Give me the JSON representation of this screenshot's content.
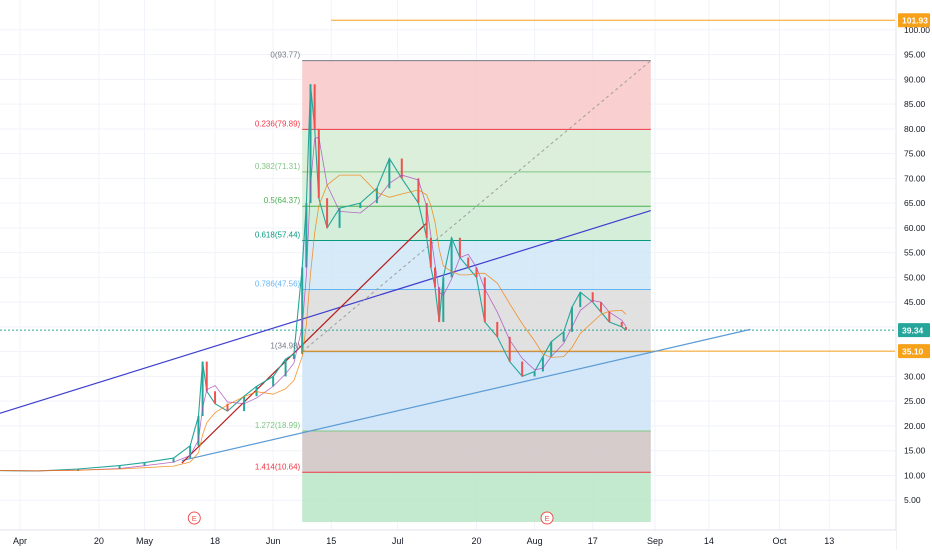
{
  "chart_data": {
    "type": "candlestick",
    "title": "",
    "xlabel": "",
    "ylabel": "",
    "ylim": [
      0.6,
      104
    ],
    "y_ticks": [
      "5.00",
      "10.00",
      "15.00",
      "20.00",
      "25.00",
      "30.00",
      "35.00",
      "40.00",
      "45.00",
      "50.00",
      "55.00",
      "60.00",
      "65.00",
      "70.00",
      "75.00",
      "80.00",
      "85.00",
      "90.00",
      "95.00",
      "100.00"
    ],
    "x_tick_labels": [
      {
        "date": "2020-04-01",
        "label": "Apr"
      },
      {
        "date": "2020-04-20",
        "label": "20"
      },
      {
        "date": "2020-05-01",
        "label": "May"
      },
      {
        "date": "2020-05-18",
        "label": "18"
      },
      {
        "date": "2020-06-01",
        "label": "Jun"
      },
      {
        "date": "2020-06-15",
        "label": "15"
      },
      {
        "date": "2020-07-01",
        "label": "Jul"
      },
      {
        "date": "2020-07-20",
        "label": "20"
      },
      {
        "date": "2020-08-03",
        "label": "Aug"
      },
      {
        "date": "2020-08-17",
        "label": "17"
      },
      {
        "date": "2020-09-01",
        "label": "Sep"
      },
      {
        "date": "2020-09-14",
        "label": "14"
      },
      {
        "date": "2020-10-01",
        "label": "Oct"
      },
      {
        "date": "2020-10-13",
        "label": "13"
      }
    ],
    "price_line": [
      [
        "2020-03-25",
        11.0
      ],
      [
        "2020-04-05",
        10.9
      ],
      [
        "2020-04-15",
        11.3
      ],
      [
        "2020-04-25",
        12.0
      ],
      [
        "2020-05-01",
        12.6
      ],
      [
        "2020-05-08",
        13.5
      ],
      [
        "2020-05-12",
        16.0
      ],
      [
        "2020-05-14",
        22.0
      ],
      [
        "2020-05-15",
        33.0
      ],
      [
        "2020-05-16",
        27.0
      ],
      [
        "2020-05-18",
        24.5
      ],
      [
        "2020-05-21",
        23.0
      ],
      [
        "2020-05-25",
        26.0
      ],
      [
        "2020-05-28",
        28.0
      ],
      [
        "2020-06-01",
        30.0
      ],
      [
        "2020-06-04",
        33.5
      ],
      [
        "2020-06-06",
        34.5
      ],
      [
        "2020-06-08",
        52.0
      ],
      [
        "2020-06-09",
        65.0
      ],
      [
        "2020-06-10",
        89.0
      ],
      [
        "2020-06-11",
        80.0
      ],
      [
        "2020-06-12",
        66.0
      ],
      [
        "2020-06-14",
        60.0
      ],
      [
        "2020-06-17",
        64.0
      ],
      [
        "2020-06-22",
        65.0
      ],
      [
        "2020-06-26",
        68.0
      ],
      [
        "2020-06-29",
        74.0
      ],
      [
        "2020-07-02",
        70.0
      ],
      [
        "2020-07-06",
        65.0
      ],
      [
        "2020-07-08",
        58.0
      ],
      [
        "2020-07-09",
        52.0
      ],
      [
        "2020-07-10",
        48.0
      ],
      [
        "2020-07-11",
        41.0
      ],
      [
        "2020-07-12",
        50.0
      ],
      [
        "2020-07-14",
        58.0
      ],
      [
        "2020-07-16",
        54.0
      ],
      [
        "2020-07-18",
        52.0
      ],
      [
        "2020-07-20",
        50.0
      ],
      [
        "2020-07-22",
        41.0
      ],
      [
        "2020-07-25",
        38.0
      ],
      [
        "2020-07-28",
        33.0
      ],
      [
        "2020-07-31",
        30.0
      ],
      [
        "2020-08-03",
        31.0
      ],
      [
        "2020-08-05",
        34.0
      ],
      [
        "2020-08-07",
        37.0
      ],
      [
        "2020-08-10",
        39.0
      ],
      [
        "2020-08-12",
        44.0
      ],
      [
        "2020-08-14",
        47.0
      ],
      [
        "2020-08-17",
        45.0
      ],
      [
        "2020-08-19",
        43.0
      ],
      [
        "2020-08-21",
        41.0
      ],
      [
        "2020-08-24",
        40.0
      ],
      [
        "2020-08-25",
        39.34
      ]
    ],
    "fib_retracement": {
      "levels": [
        {
          "ratio": "0",
          "value": 93.77,
          "label": "0(93.77)",
          "color": "#787b86"
        },
        {
          "ratio": "0.236",
          "value": 79.89,
          "label": "0.236(79.89)",
          "color": "#f23645"
        },
        {
          "ratio": "0.382",
          "value": 71.31,
          "label": "0.382(71.31)",
          "color": "#81c784"
        },
        {
          "ratio": "0.5",
          "value": 64.37,
          "label": "0.5(64.37)",
          "color": "#4caf50"
        },
        {
          "ratio": "0.618",
          "value": 57.44,
          "label": "0.618(57.44)",
          "color": "#089981"
        },
        {
          "ratio": "0.786",
          "value": 47.56,
          "label": "0.786(47.56)",
          "color": "#64b5f6"
        },
        {
          "ratio": "1",
          "value": 35.0,
          "label": "1(34.98)",
          "color": "#787b86"
        },
        {
          "ratio": "1.272",
          "value": 18.99,
          "label": "1.272(18.99)",
          "color": "#81c784"
        },
        {
          "ratio": "1.414",
          "value": 10.64,
          "label": "1.414(10.64)",
          "color": "#f23645"
        }
      ],
      "zones": [
        {
          "from": 93.77,
          "to": 79.89,
          "color": "#f8c7c7"
        },
        {
          "from": 79.89,
          "to": 71.31,
          "color": "#d5ecd3"
        },
        {
          "from": 71.31,
          "to": 64.37,
          "color": "#d5ecd3"
        },
        {
          "from": 64.37,
          "to": 57.44,
          "color": "#cdebd3"
        },
        {
          "from": 57.44,
          "to": 47.56,
          "color": "#cfe6f7"
        },
        {
          "from": 47.56,
          "to": 35.0,
          "color": "#dcdcdc"
        },
        {
          "from": 35.0,
          "to": 18.99,
          "color": "#cde3f7"
        },
        {
          "from": 18.99,
          "to": 10.64,
          "color": "#cfc3c3"
        },
        {
          "from": 10.64,
          "to": 0.6,
          "color": "#b9e5c6"
        }
      ],
      "start_date": "2020-06-08",
      "end_date": "2020-08-31"
    },
    "horizontal_lines": [
      {
        "value": 101.93,
        "label": "101.93",
        "color": "#f7a11a",
        "from_date": "2020-06-15"
      },
      {
        "value": 35.1,
        "label": "35.10",
        "color": "#f7a11a",
        "from_date": "2020-06-08"
      },
      {
        "value": 39.34,
        "label": "39.34",
        "color": "#26a69a",
        "dashed": true
      }
    ],
    "trend_lines": [
      {
        "from": [
          "2020-03-25",
          22.0
        ],
        "to": [
          "2020-08-31",
          63.5
        ],
        "color": "#3f3fcf"
      },
      {
        "from": [
          "2020-05-10",
          13.0
        ],
        "to": [
          "2020-09-24",
          39.5
        ],
        "color": "#5b9bd5"
      },
      {
        "from": [
          "2020-05-10",
          12.5
        ],
        "to": [
          "2020-07-08",
          61.0
        ],
        "color": "#b71c1c"
      }
    ],
    "dashed_lines": [
      {
        "from": [
          "2020-06-08",
          35.0
        ],
        "to": [
          "2020-08-31",
          93.77
        ],
        "color": "#9e9e9e"
      }
    ],
    "event_markers": [
      {
        "date": "2020-05-13",
        "label": "E"
      },
      {
        "date": "2020-08-06",
        "label": "E"
      }
    ],
    "last_price": 39.34
  }
}
